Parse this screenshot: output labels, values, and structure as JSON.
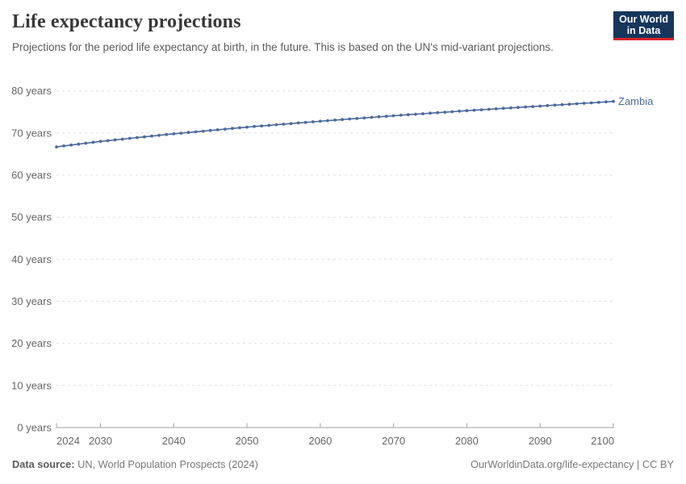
{
  "header": {
    "title": "Life expectancy projections",
    "subtitle": "Projections for the period life expectancy at birth, in the future. This is based on the UN's mid-variant projections.",
    "logo": {
      "line1": "Our World",
      "line2": "in Data"
    }
  },
  "footer": {
    "source_label": "Data source:",
    "source_text": " UN, World Population Prospects (2024)",
    "right_text": "OurWorldinData.org/life-expectancy | CC BY"
  },
  "colors": {
    "line": "#4C6A9C",
    "entity_label": "#4C6A9C",
    "grid": "#dddddd",
    "axis": "#a0a0a0",
    "tick_label": "#666666",
    "logo_bg": "#16365c",
    "logo_red": "#d8242c"
  },
  "chart_data": {
    "type": "line",
    "title": "Life expectancy projections",
    "unit": "years",
    "xlabel": "",
    "ylabel": "",
    "xlim": [
      2024,
      2100
    ],
    "ylim": [
      0,
      80
    ],
    "grid": "horizontal-dashed",
    "legend_position": "end-of-line",
    "yticks": [
      0,
      10,
      20,
      30,
      40,
      50,
      60,
      70,
      80
    ],
    "ytick_labels": [
      "0 years",
      "10 years",
      "20 years",
      "30 years",
      "40 years",
      "50 years",
      "60 years",
      "70 years",
      "80 years"
    ],
    "xticks": [
      2024,
      2030,
      2040,
      2050,
      2060,
      2070,
      2080,
      2090,
      2100
    ],
    "xtick_labels": [
      "2024",
      "2030",
      "2040",
      "2050",
      "2060",
      "2070",
      "2080",
      "2090",
      "2100"
    ],
    "x": [
      2024,
      2025,
      2026,
      2027,
      2028,
      2029,
      2030,
      2031,
      2032,
      2033,
      2034,
      2035,
      2036,
      2037,
      2038,
      2039,
      2040,
      2041,
      2042,
      2043,
      2044,
      2045,
      2046,
      2047,
      2048,
      2049,
      2050,
      2051,
      2052,
      2053,
      2054,
      2055,
      2056,
      2057,
      2058,
      2059,
      2060,
      2061,
      2062,
      2063,
      2064,
      2065,
      2066,
      2067,
      2068,
      2069,
      2070,
      2071,
      2072,
      2073,
      2074,
      2075,
      2076,
      2077,
      2078,
      2079,
      2080,
      2081,
      2082,
      2083,
      2084,
      2085,
      2086,
      2087,
      2088,
      2089,
      2090,
      2091,
      2092,
      2093,
      2094,
      2095,
      2096,
      2097,
      2098,
      2099,
      2100
    ],
    "series": [
      {
        "name": "Zambia",
        "color": "#4C6A9C",
        "values": [
          66.7,
          66.92,
          67.13,
          67.35,
          67.57,
          67.78,
          68.0,
          68.18,
          68.36,
          68.54,
          68.72,
          68.9,
          69.08,
          69.26,
          69.44,
          69.62,
          69.8,
          69.96,
          70.12,
          70.28,
          70.44,
          70.6,
          70.76,
          70.92,
          71.08,
          71.24,
          71.4,
          71.54,
          71.68,
          71.82,
          71.96,
          72.1,
          72.24,
          72.38,
          72.52,
          72.66,
          72.8,
          72.93,
          73.06,
          73.19,
          73.32,
          73.45,
          73.58,
          73.71,
          73.84,
          73.97,
          74.1,
          74.22,
          74.34,
          74.46,
          74.58,
          74.7,
          74.82,
          74.94,
          75.06,
          75.18,
          75.3,
          75.41,
          75.52,
          75.63,
          75.74,
          75.85,
          75.96,
          76.07,
          76.18,
          76.29,
          76.4,
          76.51,
          76.62,
          76.73,
          76.84,
          76.95,
          77.06,
          77.17,
          77.28,
          77.39,
          77.5
        ]
      }
    ]
  }
}
